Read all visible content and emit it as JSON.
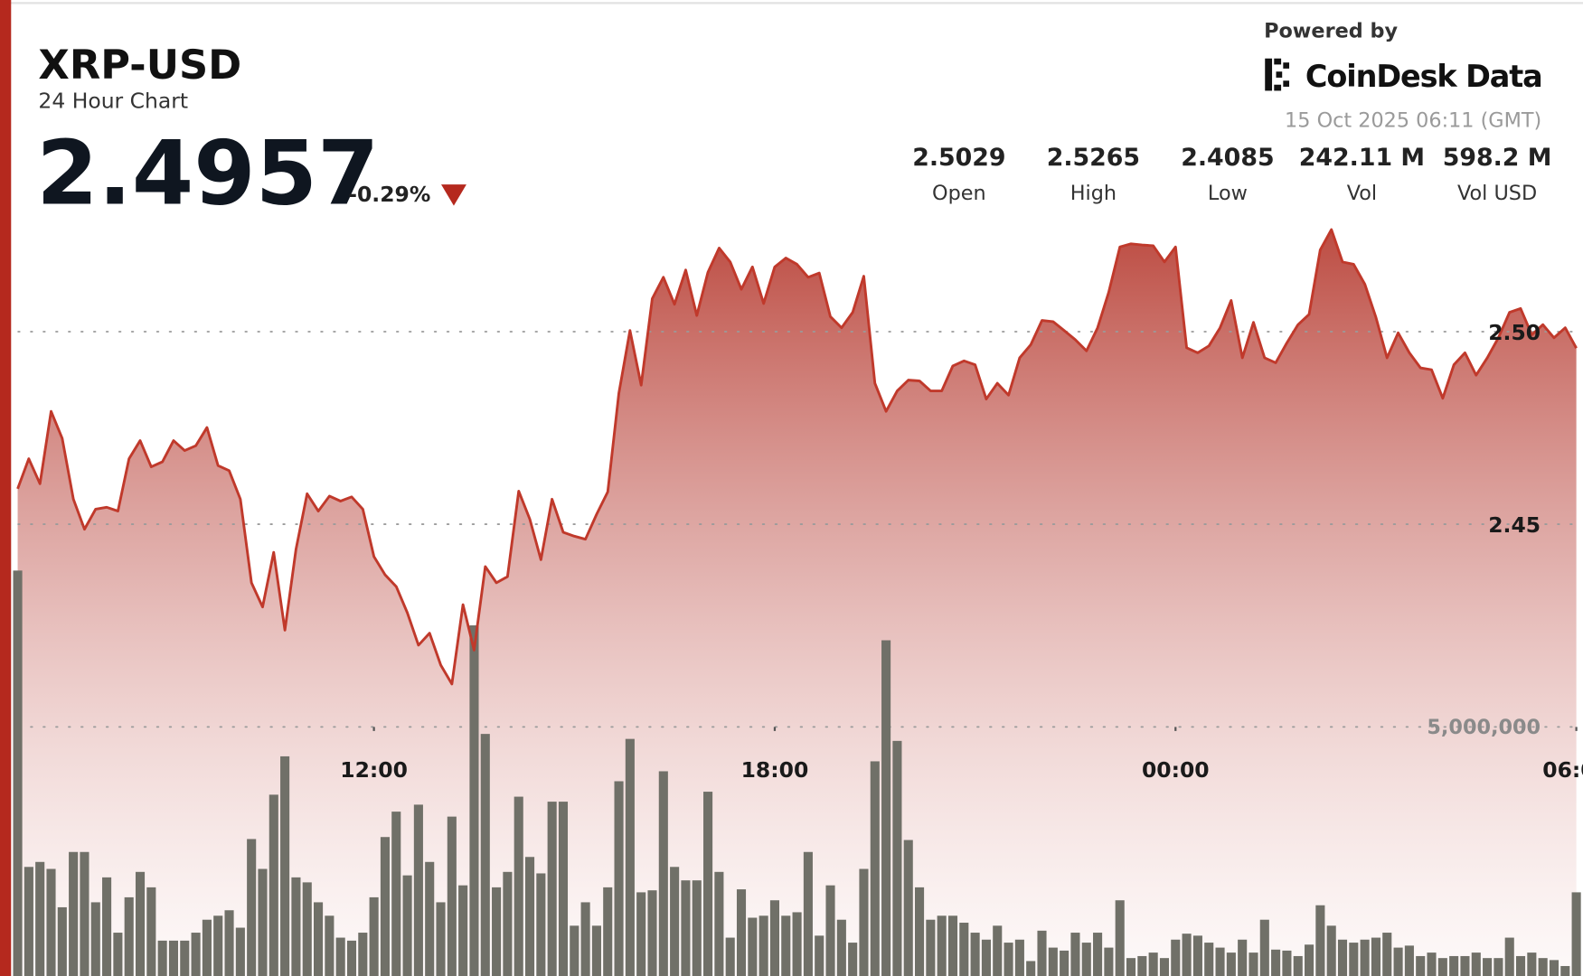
{
  "header": {
    "symbol": "XRP-USD",
    "subtitle": "24 Hour Chart",
    "price": "2.4957",
    "change": "-0.29%",
    "powered_by": "Powered by",
    "brand": "CoinDesk Data",
    "timestamp": "15 Oct 2025 06:11 (GMT)"
  },
  "stats": [
    {
      "value": "2.5029",
      "label": "Open"
    },
    {
      "value": "2.5265",
      "label": "High"
    },
    {
      "value": "2.4085",
      "label": "Low"
    },
    {
      "value": "242.11 M",
      "label": "Vol"
    },
    {
      "value": "598.2 M",
      "label": "Vol USD"
    }
  ],
  "chart_data": {
    "type": "line",
    "grid": true,
    "xlim": [
      -0.5,
      140.6
    ],
    "xticks": [
      {
        "value": 32,
        "label": "12:00"
      },
      {
        "value": 68,
        "label": "18:00"
      },
      {
        "value": 104,
        "label": "00:00"
      },
      {
        "value": 140,
        "label": "06:00"
      }
    ],
    "ylim": [
      2.3327,
      2.5272
    ],
    "yticks": [
      {
        "value": 2.45,
        "label": "2.45"
      },
      {
        "value": 2.5,
        "label": "2.50"
      }
    ],
    "y2lim": [
      0,
      15040000
    ],
    "y2ticks": [
      {
        "value": 5000000,
        "label": "5,000,000"
      }
    ],
    "series": [
      {
        "type": "line",
        "color": "#c0392b",
        "values": [
          2.4592,
          2.467,
          2.4605,
          2.4793,
          2.4723,
          2.4565,
          2.4487,
          2.4539,
          2.4544,
          2.4534,
          2.467,
          2.4717,
          2.4649,
          2.4662,
          2.4717,
          2.4691,
          2.4704,
          2.4751,
          2.4652,
          2.4639,
          2.4565,
          2.4348,
          2.4285,
          2.4427,
          2.4225,
          2.4435,
          2.4579,
          2.4534,
          2.4573,
          2.456,
          2.4571,
          2.4539,
          2.4416,
          2.4369,
          2.4338,
          2.427,
          2.4186,
          2.4217,
          2.4134,
          2.4085,
          2.4291,
          2.4173,
          2.439,
          2.4348,
          2.4364,
          2.4586,
          2.4513,
          2.4408,
          2.4565,
          2.4479,
          2.4469,
          2.4461,
          2.4526,
          2.4584,
          2.484,
          2.5003,
          2.4861,
          2.5086,
          2.5141,
          2.5071,
          2.516,
          2.5042,
          2.5154,
          2.5217,
          2.5181,
          2.511,
          2.5168,
          2.5073,
          2.5168,
          2.5191,
          2.5175,
          2.5141,
          2.5152,
          2.5039,
          2.501,
          2.505,
          2.5144,
          2.4866,
          2.4793,
          2.4846,
          2.4874,
          2.4872,
          2.4846,
          2.4846,
          2.4911,
          2.4924,
          2.4914,
          2.4825,
          2.4866,
          2.4835,
          2.4932,
          2.4966,
          2.5029,
          2.5026,
          2.5003,
          2.4979,
          2.495,
          2.501,
          2.5102,
          2.522,
          2.5228,
          2.5225,
          2.5223,
          2.5181,
          2.522,
          2.4958,
          2.4945,
          2.4963,
          2.501,
          2.5081,
          2.4932,
          2.5024,
          2.4932,
          2.4919,
          2.4971,
          2.5018,
          2.5045,
          2.5212,
          2.5265,
          2.5181,
          2.5175,
          2.5123,
          2.5037,
          2.4932,
          2.4997,
          2.4945,
          2.4906,
          2.4901,
          2.4827,
          2.4914,
          2.4945,
          2.4887,
          2.4932,
          2.4984,
          2.505,
          2.506,
          2.4992,
          2.5018,
          2.4984,
          2.501,
          2.4957
        ]
      },
      {
        "type": "bar",
        "axis": "y2",
        "color": "#707068",
        "values": [
          8140000,
          2190000,
          2290000,
          2150000,
          1380000,
          2490000,
          2490000,
          1480000,
          1980000,
          870000,
          1580000,
          2090000,
          1780000,
          710000,
          710000,
          710000,
          870000,
          1130000,
          1210000,
          1320000,
          970000,
          2750000,
          2150000,
          3640000,
          4410000,
          1980000,
          1880000,
          1480000,
          1210000,
          770000,
          710000,
          870000,
          1580000,
          2790000,
          3300000,
          2020000,
          3440000,
          2290000,
          1480000,
          3200000,
          1820000,
          7040000,
          4860000,
          1780000,
          2090000,
          3600000,
          2390000,
          2060000,
          3500000,
          3500000,
          1010000,
          1480000,
          1010000,
          1780000,
          3910000,
          4760000,
          1680000,
          1720000,
          4110000,
          2190000,
          1920000,
          1920000,
          3700000,
          2090000,
          770000,
          1740000,
          1170000,
          1210000,
          1520000,
          1210000,
          1280000,
          2490000,
          810000,
          1820000,
          1130000,
          670000,
          2150000,
          4310000,
          6740000,
          4720000,
          2730000,
          1780000,
          1130000,
          1210000,
          1210000,
          1070000,
          870000,
          730000,
          1010000,
          670000,
          730000,
          300000,
          910000,
          570000,
          510000,
          870000,
          670000,
          870000,
          570000,
          1520000,
          360000,
          400000,
          470000,
          360000,
          730000,
          850000,
          810000,
          670000,
          570000,
          470000,
          730000,
          470000,
          1130000,
          530000,
          510000,
          400000,
          630000,
          1420000,
          1010000,
          730000,
          670000,
          730000,
          770000,
          870000,
          570000,
          610000,
          400000,
          470000,
          360000,
          400000,
          400000,
          470000,
          360000,
          360000,
          770000,
          400000,
          470000,
          360000,
          320000,
          200000,
          1680000
        ]
      }
    ]
  }
}
